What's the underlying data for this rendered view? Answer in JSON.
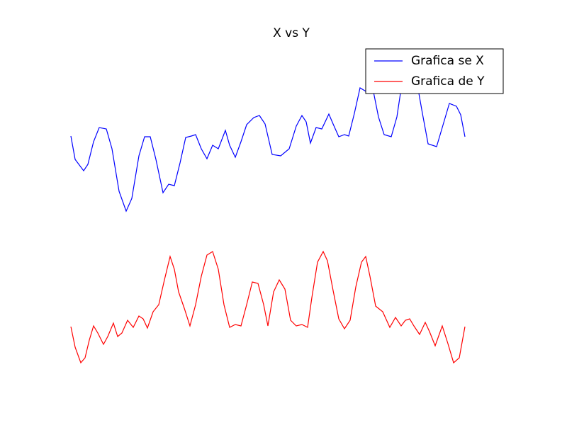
{
  "chart_data": {
    "type": "line",
    "title": "X vs Y",
    "xlim": [
      0,
      620
    ],
    "ylim": [
      0,
      477
    ],
    "legend": "upper right",
    "grid": false,
    "series": [
      {
        "name": "Grafica se X",
        "color": "#0000ff",
        "x": [
          0,
          6,
          18,
          24,
          32,
          40,
          50,
          58,
          68,
          78,
          86,
          96,
          104,
          112,
          120,
          130,
          138,
          146,
          154,
          162,
          170,
          176,
          184,
          192,
          200,
          208,
          218,
          224,
          232,
          240,
          248,
          258,
          266,
          274,
          284,
          296,
          308,
          318,
          326,
          332,
          338,
          346,
          354,
          364,
          370,
          378,
          386,
          392,
          400,
          408,
          418,
          426,
          434,
          442,
          452,
          460,
          466,
          474,
          480,
          488,
          496,
          504,
          516,
          524,
          534,
          544,
          550,
          556
        ],
        "values": [
          345,
          312,
          296,
          305,
          337,
          357,
          355,
          327,
          267,
          239,
          257,
          317,
          344,
          344,
          312,
          265,
          277,
          275,
          307,
          343,
          345,
          347,
          327,
          313,
          332,
          327,
          353,
          332,
          315,
          337,
          361,
          371,
          374,
          362,
          319,
          317,
          327,
          359,
          374,
          365,
          335,
          357,
          355,
          376,
          362,
          344,
          347,
          345,
          377,
          413,
          407,
          412,
          372,
          347,
          344,
          372,
          412,
          437,
          427,
          422,
          377,
          334,
          330,
          357,
          391,
          387,
          375,
          344
        ]
      },
      {
        "name": "Grafica de Y",
        "color": "#ff0000",
        "x": [
          0,
          6,
          14,
          20,
          26,
          32,
          38,
          46,
          52,
          60,
          66,
          72,
          80,
          88,
          96,
          102,
          108,
          116,
          124,
          132,
          140,
          146,
          152,
          160,
          168,
          176,
          184,
          192,
          200,
          208,
          216,
          224,
          232,
          240,
          248,
          256,
          264,
          272,
          278,
          286,
          294,
          302,
          310,
          318,
          326,
          334,
          340,
          348,
          356,
          362,
          370,
          378,
          386,
          394,
          402,
          410,
          416,
          422,
          430,
          440,
          450,
          458,
          466,
          472,
          478,
          484,
          492,
          500,
          506,
          514,
          524,
          532,
          540,
          548,
          556
        ],
        "values": [
          76,
          47,
          25,
          32,
          57,
          77,
          67,
          51,
          62,
          81,
          62,
          67,
          85,
          75,
          91,
          87,
          74,
          97,
          107,
          142,
          175,
          157,
          125,
          102,
          77,
          107,
          147,
          177,
          182,
          157,
          107,
          75,
          79,
          77,
          107,
          139,
          137,
          107,
          77,
          125,
          142,
          129,
          85,
          77,
          79,
          75,
          117,
          167,
          182,
          169,
          127,
          87,
          73,
          85,
          132,
          167,
          175,
          147,
          105,
          97,
          75,
          89,
          77,
          85,
          87,
          77,
          65,
          82,
          69,
          49,
          77,
          52,
          25,
          32,
          76
        ]
      }
    ]
  }
}
